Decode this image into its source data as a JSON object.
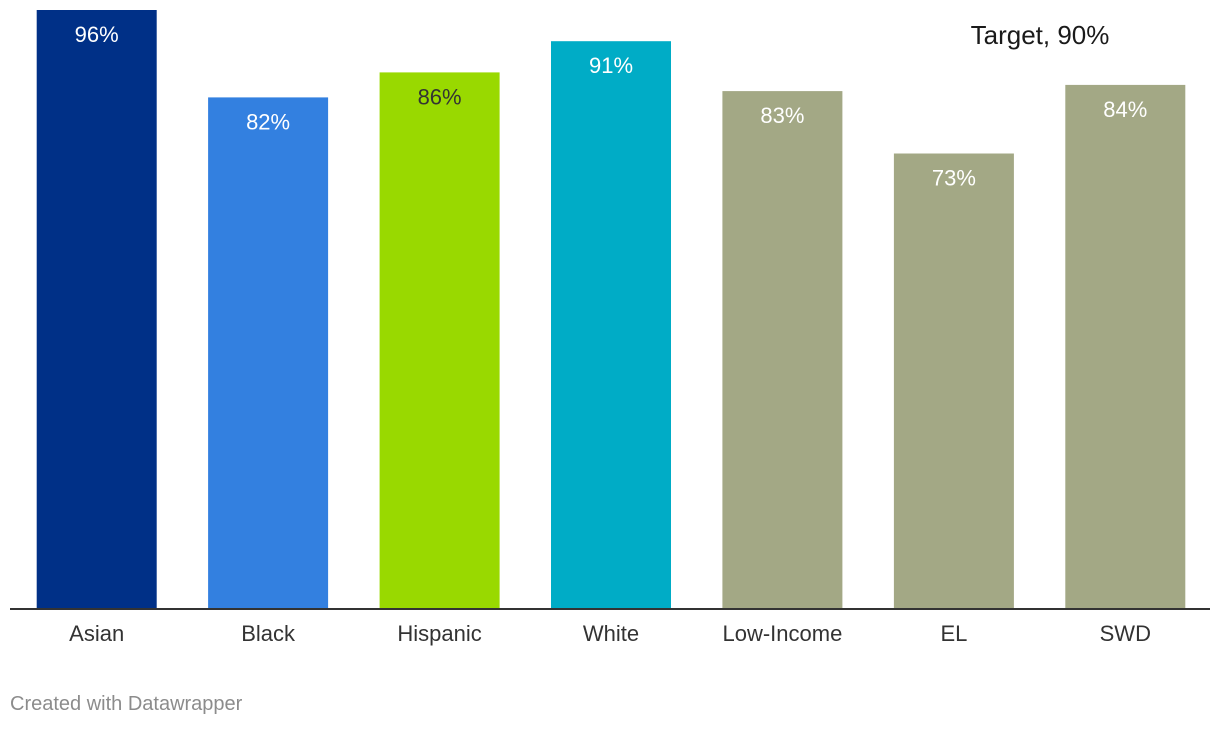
{
  "chart_data": {
    "type": "bar",
    "categories": [
      "Asian",
      "Black",
      "Hispanic",
      "White",
      "Low-Income",
      "EL",
      "SWD"
    ],
    "values": [
      96,
      82,
      86,
      91,
      83,
      73,
      84
    ],
    "value_labels": [
      "96%",
      "82%",
      "86%",
      "91%",
      "83%",
      "73%",
      "84%"
    ],
    "colors": [
      "#003087",
      "#3380e0",
      "#99d900",
      "#00acc6",
      "#a3a885",
      "#a3a885",
      "#a3a885"
    ],
    "target": {
      "label": "Target, 90%",
      "value": 90
    },
    "ylim": [
      0,
      96
    ],
    "title": "",
    "xlabel": "",
    "ylabel": ""
  },
  "footer": {
    "credit": "Created with Datawrapper"
  }
}
